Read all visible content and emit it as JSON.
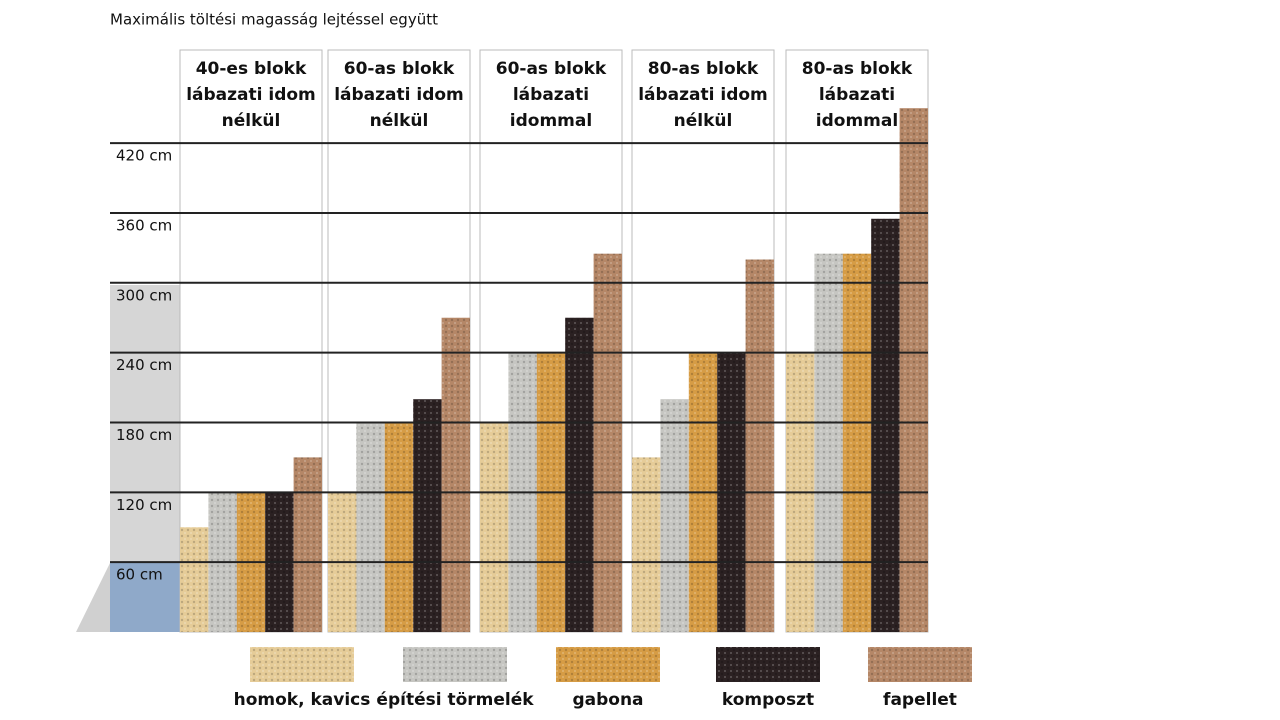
{
  "chart_data": {
    "type": "bar",
    "title": "Maximális töltési magasság lejtéssel együtt",
    "categories": [
      "40-es blokk lábazati idom nélkül",
      "60-as blokk lábazati idom nélkül",
      "60-as blokk lábazati idommal",
      "80-as blokk lábazati idom nélkül",
      "80-as blokk lábazati idommal"
    ],
    "series": [
      {
        "name": "homok, kavics",
        "color": "#e6cc98",
        "values": [
          90,
          120,
          180,
          150,
          240
        ]
      },
      {
        "name": "építési törmelék",
        "color": "#c6c6c2",
        "values": [
          120,
          180,
          240,
          200,
          325
        ]
      },
      {
        "name": "gabona",
        "color": "#d69c45",
        "values": [
          120,
          180,
          240,
          240,
          325
        ]
      },
      {
        "name": "komposzt",
        "color": "#2b2122",
        "values": [
          120,
          200,
          270,
          240,
          355
        ]
      },
      {
        "name": "fapellet",
        "color": "#b58767",
        "values": [
          150,
          270,
          325,
          320,
          450
        ]
      }
    ],
    "ylim": [
      0,
      500
    ],
    "yticks": [
      {
        "value": 60,
        "label": "60 cm"
      },
      {
        "value": 120,
        "label": "120 cm"
      },
      {
        "value": 180,
        "label": "180 cm"
      },
      {
        "value": 240,
        "label": "240 cm"
      },
      {
        "value": 300,
        "label": "300 cm"
      },
      {
        "value": 360,
        "label": "360 cm"
      },
      {
        "value": 420,
        "label": "420 cm"
      }
    ],
    "grid": true
  }
}
